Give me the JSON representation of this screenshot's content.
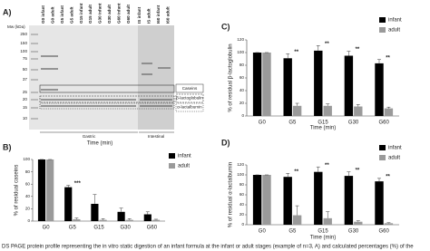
{
  "gel": {
    "panel": "A)",
    "mw_title": "Mw (kDa)",
    "mw": [
      "250",
      "150",
      "100",
      "75",
      "50",
      "37",
      "25",
      "20",
      "15",
      "10"
    ],
    "lanes": [
      "G0 infant",
      "G0 adult",
      "G5 infant",
      "G5 adult",
      "G15 infant",
      "G15 adult",
      "G30 infant",
      "G30 adult",
      "G60 infant",
      "G60 adult",
      "IS infant",
      "IS adult",
      "I60 infant",
      "I60 adult"
    ],
    "bands": [
      "Caseins",
      "β-lactoglobulin",
      "α-lactalbumin"
    ],
    "sections": [
      "Gastric",
      "Intestinal"
    ]
  },
  "chart_data": [
    {
      "type": "bar",
      "panel": "B)",
      "ylabel": "% of residual caseins",
      "xlabel": "Time (min)",
      "categories": [
        "G0",
        "G5",
        "G15",
        "G30",
        "G60"
      ],
      "ylim": [
        0,
        100
      ],
      "yticks": [
        0,
        20,
        40,
        60,
        80,
        100
      ],
      "legend": "upper right",
      "series": [
        {
          "name": "infant",
          "color": "#000000",
          "values": [
            100,
            55,
            28,
            15,
            11
          ],
          "errors": [
            0,
            3,
            15,
            6,
            4
          ]
        },
        {
          "name": "adult",
          "color": "#9a9a9a",
          "values": [
            100,
            3,
            2,
            2,
            2
          ],
          "errors": [
            0,
            2,
            2,
            2,
            1
          ]
        }
      ],
      "annotations": [
        {
          "text": "***",
          "x": "G5"
        }
      ]
    },
    {
      "type": "bar",
      "panel": "C)",
      "ylabel": "% of residual β-lactoglobulin",
      "xlabel": "Time (min)",
      "categories": [
        "G0",
        "G5",
        "G15",
        "G30",
        "G60"
      ],
      "ylim": [
        0,
        120
      ],
      "yticks": [
        0,
        20,
        40,
        60,
        80,
        100,
        120
      ],
      "legend": "upper right",
      "series": [
        {
          "name": "infant",
          "color": "#000000",
          "values": [
            100,
            91,
            103,
            95,
            83
          ],
          "errors": [
            0,
            7,
            8,
            7,
            6
          ]
        },
        {
          "name": "adult",
          "color": "#9a9a9a",
          "values": [
            100,
            16,
            16,
            15,
            12
          ],
          "errors": [
            0,
            4,
            3,
            3,
            2
          ]
        }
      ],
      "annotations": [
        {
          "text": "**",
          "x": "G5"
        },
        {
          "text": "**",
          "x": "G15"
        },
        {
          "text": "**",
          "x": "G30"
        },
        {
          "text": "**",
          "x": "G60"
        }
      ]
    },
    {
      "type": "bar",
      "panel": "D)",
      "ylabel": "% of residual α-lactalbumin",
      "xlabel": "Time (min)",
      "categories": [
        "G0",
        "G5",
        "G15",
        "G30",
        "G60"
      ],
      "ylim": [
        0,
        120
      ],
      "yticks": [
        0,
        20,
        40,
        60,
        80,
        100,
        120
      ],
      "legend": "upper right",
      "series": [
        {
          "name": "infant",
          "color": "#000000",
          "values": [
            100,
            96,
            106,
            98,
            87
          ],
          "errors": [
            0,
            7,
            10,
            8,
            6
          ]
        },
        {
          "name": "adult",
          "color": "#9a9a9a",
          "values": [
            100,
            19,
            13,
            6,
            3
          ],
          "errors": [
            0,
            19,
            13,
            2,
            1
          ]
        }
      ],
      "annotations": [
        {
          "text": "**",
          "x": "G5"
        },
        {
          "text": "**",
          "x": "G15"
        },
        {
          "text": "**",
          "x": "G30"
        },
        {
          "text": "**",
          "x": "G60"
        }
      ]
    }
  ],
  "caption": "DS PAGE protein profile representing the in vitro static digestion of an infant formula at the infant or adult stages (example of n=3, A) and calculated percentages (%) of the"
}
